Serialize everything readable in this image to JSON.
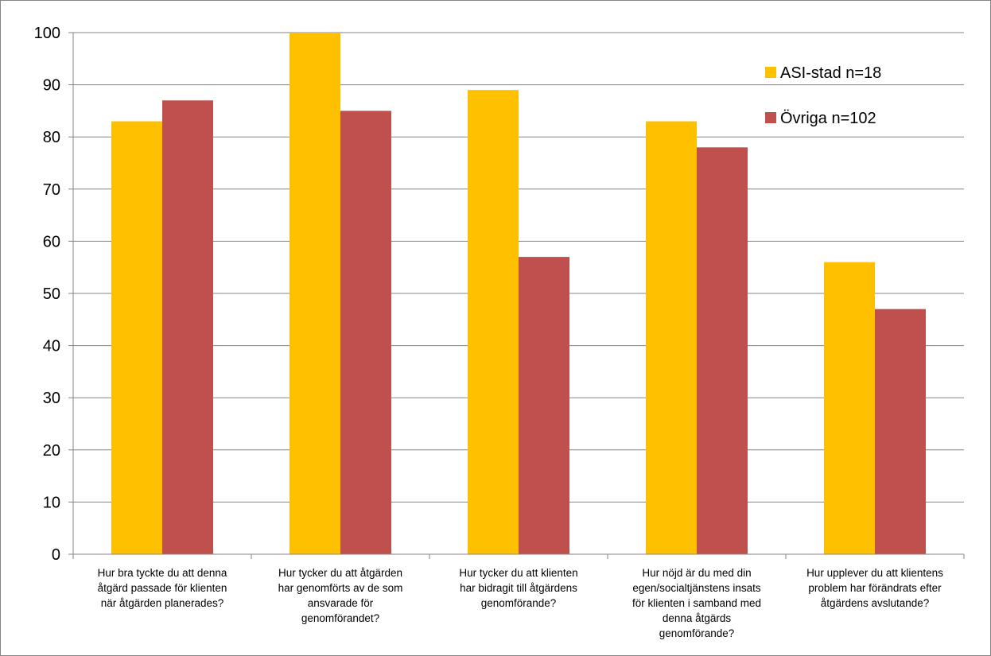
{
  "chart_data": {
    "type": "bar",
    "categories": [
      [
        "Hur bra tyckte du att denna",
        "åtgärd passade för klienten",
        "när åtgärden planerades?"
      ],
      [
        "Hur tycker du att åtgärden",
        "har genomförts av de som",
        "ansvarade för",
        "genomförandet?"
      ],
      [
        "Hur tycker du att klienten",
        "har bidragit till åtgärdens",
        "genomförande?"
      ],
      [
        "Hur nöjd är du med din",
        "egen/socialtjänstens insats",
        "för klienten i samband med",
        "denna åtgärds",
        "genomförande?"
      ],
      [
        "Hur upplever du att klientens",
        "problem har förändrats efter",
        "åtgärdens avslutande?"
      ]
    ],
    "series": [
      {
        "name": "ASI-stad n=18",
        "color": "#FFC000",
        "values": [
          83,
          100,
          89,
          83,
          56
        ]
      },
      {
        "name": "Övriga n=102",
        "color": "#C0504D",
        "values": [
          87,
          85,
          57,
          78,
          47
        ]
      }
    ],
    "ylim": [
      0,
      100
    ],
    "yticks": [
      0,
      10,
      20,
      30,
      40,
      50,
      60,
      70,
      80,
      90,
      100
    ],
    "grid": true,
    "legend_position": "top-right"
  }
}
